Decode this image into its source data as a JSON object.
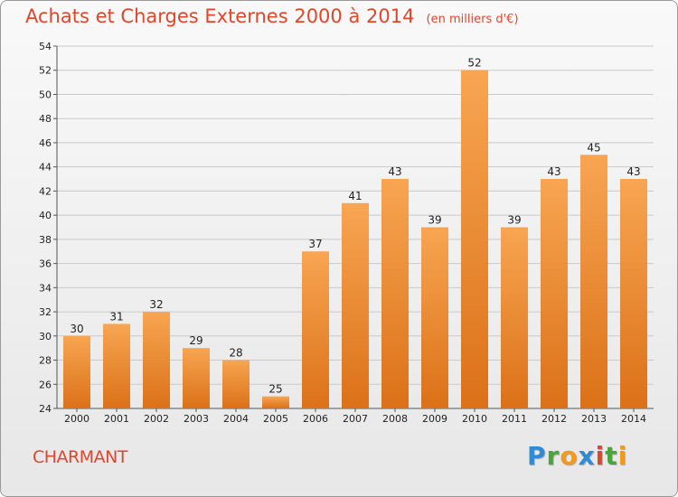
{
  "title": "Achats et Charges Externes 2000 à 2014",
  "unit": "(en milliers d'€)",
  "commune": "CHARMANT",
  "logo": {
    "letters": [
      "P",
      "r",
      "o",
      "x",
      "i",
      "t",
      "i"
    ],
    "colors": [
      "#2f8bd6",
      "#4aa63c",
      "#f39a1e",
      "#2f8bd6",
      "#e2452b",
      "#4aa63c",
      "#f39a1e"
    ]
  },
  "chart_data": {
    "type": "bar",
    "categories": [
      "2000",
      "2001",
      "2002",
      "2003",
      "2004",
      "2005",
      "2006",
      "2007",
      "2008",
      "2009",
      "2010",
      "2011",
      "2012",
      "2013",
      "2014"
    ],
    "values": [
      30,
      31,
      32,
      29,
      28,
      25,
      37,
      41,
      43,
      39,
      52,
      39,
      43,
      45,
      43
    ],
    "ylim": [
      24,
      54
    ],
    "yticks": [
      24,
      26,
      28,
      30,
      32,
      34,
      36,
      38,
      40,
      42,
      44,
      46,
      48,
      50,
      52,
      54
    ],
    "grid": true,
    "bar_color": "#f0892a"
  }
}
